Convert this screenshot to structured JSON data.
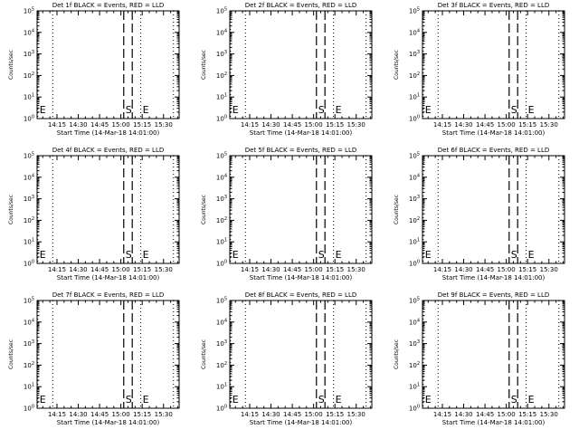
{
  "page": {
    "background": "#ffffff",
    "ink": "#000000"
  },
  "chart_data": [
    {
      "type": "line",
      "title": "Det 1f BLACK = Events, RED = LLD",
      "xlabel": "Start Time (14-Mar-18 14:01:00)",
      "ylabel": "Counts/sec",
      "xlim": [
        "14:01:00",
        "15:41:00"
      ],
      "ylim": [
        1,
        100000
      ],
      "yscale": "log",
      "x_ticks": [
        "14:15",
        "14:30",
        "14:45",
        "15:00",
        "15:15",
        "15:30"
      ],
      "y_ticks": [
        "10^0",
        "10^1",
        "10^2",
        "10^3",
        "10^4",
        "10^5"
      ],
      "series": [],
      "markers": [
        {
          "label": "E",
          "time": "14:01:30",
          "style": "dotted"
        },
        {
          "label": "",
          "time": "14:12:00",
          "style": "dotted"
        },
        {
          "label": "S",
          "time": "15:02:00",
          "style": "dashed"
        },
        {
          "label": "",
          "time": "15:08:00",
          "style": "dashed"
        },
        {
          "label": "E",
          "time": "15:14:00",
          "style": "dotted"
        },
        {
          "label": "",
          "time": "15:37:00",
          "style": "dotted"
        }
      ]
    },
    {
      "type": "line",
      "title": "Det 2f BLACK = Events, RED = LLD",
      "xlabel": "Start Time (14-Mar-18 14:01:00)",
      "ylabel": "Counts/sec",
      "xlim": [
        "14:01:00",
        "15:41:00"
      ],
      "ylim": [
        1,
        100000
      ],
      "yscale": "log",
      "x_ticks": [
        "14:15",
        "14:30",
        "14:45",
        "15:00",
        "15:15",
        "15:30"
      ],
      "y_ticks": [
        "10^0",
        "10^1",
        "10^2",
        "10^3",
        "10^4",
        "10^5"
      ],
      "series": [],
      "markers": [
        {
          "label": "E",
          "time": "14:01:30",
          "style": "dotted"
        },
        {
          "label": "",
          "time": "14:12:00",
          "style": "dotted"
        },
        {
          "label": "S",
          "time": "15:02:00",
          "style": "dashed"
        },
        {
          "label": "",
          "time": "15:08:00",
          "style": "dashed"
        },
        {
          "label": "E",
          "time": "15:14:00",
          "style": "dotted"
        },
        {
          "label": "",
          "time": "15:37:00",
          "style": "dotted"
        }
      ]
    },
    {
      "type": "line",
      "title": "Det 3f BLACK = Events, RED = LLD",
      "xlabel": "Start Time (14-Mar-18 14:01:00)",
      "ylabel": "Counts/sec",
      "xlim": [
        "14:01:00",
        "15:41:00"
      ],
      "ylim": [
        1,
        100000
      ],
      "yscale": "log",
      "x_ticks": [
        "14:15",
        "14:30",
        "14:45",
        "15:00",
        "15:15",
        "15:30"
      ],
      "y_ticks": [
        "10^0",
        "10^1",
        "10^2",
        "10^3",
        "10^4",
        "10^5"
      ],
      "series": [],
      "markers": [
        {
          "label": "E",
          "time": "14:01:30",
          "style": "dotted"
        },
        {
          "label": "",
          "time": "14:12:00",
          "style": "dotted"
        },
        {
          "label": "S",
          "time": "15:02:00",
          "style": "dashed"
        },
        {
          "label": "",
          "time": "15:08:00",
          "style": "dashed"
        },
        {
          "label": "E",
          "time": "15:14:00",
          "style": "dotted"
        },
        {
          "label": "",
          "time": "15:37:00",
          "style": "dotted"
        }
      ]
    },
    {
      "type": "line",
      "title": "Det 4f BLACK = Events, RED = LLD",
      "xlabel": "Start Time (14-Mar-18 14:01:00)",
      "ylabel": "Counts/sec",
      "xlim": [
        "14:01:00",
        "15:41:00"
      ],
      "ylim": [
        1,
        100000
      ],
      "yscale": "log",
      "x_ticks": [
        "14:15",
        "14:30",
        "14:45",
        "15:00",
        "15:15",
        "15:30"
      ],
      "y_ticks": [
        "10^0",
        "10^1",
        "10^2",
        "10^3",
        "10^4",
        "10^5"
      ],
      "series": [],
      "markers": [
        {
          "label": "E",
          "time": "14:01:30",
          "style": "dotted"
        },
        {
          "label": "",
          "time": "14:12:00",
          "style": "dotted"
        },
        {
          "label": "S",
          "time": "15:02:00",
          "style": "dashed"
        },
        {
          "label": "",
          "time": "15:08:00",
          "style": "dashed"
        },
        {
          "label": "E",
          "time": "15:14:00",
          "style": "dotted"
        },
        {
          "label": "",
          "time": "15:37:00",
          "style": "dotted"
        }
      ]
    },
    {
      "type": "line",
      "title": "Det 5f BLACK = Events, RED = LLD",
      "xlabel": "Start Time (14-Mar-18 14:01:00)",
      "ylabel": "Counts/sec",
      "xlim": [
        "14:01:00",
        "15:41:00"
      ],
      "ylim": [
        1,
        100000
      ],
      "yscale": "log",
      "x_ticks": [
        "14:15",
        "14:30",
        "14:45",
        "15:00",
        "15:15",
        "15:30"
      ],
      "y_ticks": [
        "10^0",
        "10^1",
        "10^2",
        "10^3",
        "10^4",
        "10^5"
      ],
      "series": [],
      "markers": [
        {
          "label": "E",
          "time": "14:01:30",
          "style": "dotted"
        },
        {
          "label": "",
          "time": "14:12:00",
          "style": "dotted"
        },
        {
          "label": "S",
          "time": "15:02:00",
          "style": "dashed"
        },
        {
          "label": "",
          "time": "15:08:00",
          "style": "dashed"
        },
        {
          "label": "E",
          "time": "15:14:00",
          "style": "dotted"
        },
        {
          "label": "",
          "time": "15:37:00",
          "style": "dotted"
        }
      ]
    },
    {
      "type": "line",
      "title": "Det 6f BLACK = Events, RED = LLD",
      "xlabel": "Start Time (14-Mar-18 14:01:00)",
      "ylabel": "Counts/sec",
      "xlim": [
        "14:01:00",
        "15:41:00"
      ],
      "ylim": [
        1,
        100000
      ],
      "yscale": "log",
      "x_ticks": [
        "14:15",
        "14:30",
        "14:45",
        "15:00",
        "15:15",
        "15:30"
      ],
      "y_ticks": [
        "10^0",
        "10^1",
        "10^2",
        "10^3",
        "10^4",
        "10^5"
      ],
      "series": [],
      "markers": [
        {
          "label": "E",
          "time": "14:01:30",
          "style": "dotted"
        },
        {
          "label": "",
          "time": "14:12:00",
          "style": "dotted"
        },
        {
          "label": "S",
          "time": "15:02:00",
          "style": "dashed"
        },
        {
          "label": "",
          "time": "15:08:00",
          "style": "dashed"
        },
        {
          "label": "E",
          "time": "15:14:00",
          "style": "dotted"
        },
        {
          "label": "",
          "time": "15:37:00",
          "style": "dotted"
        }
      ]
    },
    {
      "type": "line",
      "title": "Det 7f BLACK = Events, RED = LLD",
      "xlabel": "Start Time (14-Mar-18 14:01:00)",
      "ylabel": "Counts/sec",
      "xlim": [
        "14:01:00",
        "15:41:00"
      ],
      "ylim": [
        1,
        100000
      ],
      "yscale": "log",
      "x_ticks": [
        "14:15",
        "14:30",
        "14:45",
        "15:00",
        "15:15",
        "15:30"
      ],
      "y_ticks": [
        "10^0",
        "10^1",
        "10^2",
        "10^3",
        "10^4",
        "10^5"
      ],
      "series": [],
      "markers": [
        {
          "label": "E",
          "time": "14:01:30",
          "style": "dotted"
        },
        {
          "label": "",
          "time": "14:12:00",
          "style": "dotted"
        },
        {
          "label": "S",
          "time": "15:02:00",
          "style": "dashed"
        },
        {
          "label": "",
          "time": "15:08:00",
          "style": "dashed"
        },
        {
          "label": "E",
          "time": "15:14:00",
          "style": "dotted"
        },
        {
          "label": "",
          "time": "15:37:00",
          "style": "dotted"
        }
      ]
    },
    {
      "type": "line",
      "title": "Det 8f BLACK = Events, RED = LLD",
      "xlabel": "Start Time (14-Mar-18 14:01:00)",
      "ylabel": "Counts/sec",
      "xlim": [
        "14:01:00",
        "15:41:00"
      ],
      "ylim": [
        1,
        100000
      ],
      "yscale": "log",
      "x_ticks": [
        "14:15",
        "14:30",
        "14:45",
        "15:00",
        "15:15",
        "15:30"
      ],
      "y_ticks": [
        "10^0",
        "10^1",
        "10^2",
        "10^3",
        "10^4",
        "10^5"
      ],
      "series": [],
      "markers": [
        {
          "label": "E",
          "time": "14:01:30",
          "style": "dotted"
        },
        {
          "label": "",
          "time": "14:12:00",
          "style": "dotted"
        },
        {
          "label": "S",
          "time": "15:02:00",
          "style": "dashed"
        },
        {
          "label": "",
          "time": "15:08:00",
          "style": "dashed"
        },
        {
          "label": "E",
          "time": "15:14:00",
          "style": "dotted"
        },
        {
          "label": "",
          "time": "15:37:00",
          "style": "dotted"
        }
      ]
    },
    {
      "type": "line",
      "title": "Det 9f BLACK = Events, RED = LLD",
      "xlabel": "Start Time (14-Mar-18 14:01:00)",
      "ylabel": "Counts/sec",
      "xlim": [
        "14:01:00",
        "15:41:00"
      ],
      "ylim": [
        1,
        100000
      ],
      "yscale": "log",
      "x_ticks": [
        "14:15",
        "14:30",
        "14:45",
        "15:00",
        "15:15",
        "15:30"
      ],
      "y_ticks": [
        "10^0",
        "10^1",
        "10^2",
        "10^3",
        "10^4",
        "10^5"
      ],
      "series": [],
      "markers": [
        {
          "label": "E",
          "time": "14:01:30",
          "style": "dotted"
        },
        {
          "label": "",
          "time": "14:12:00",
          "style": "dotted"
        },
        {
          "label": "S",
          "time": "15:02:00",
          "style": "dashed"
        },
        {
          "label": "",
          "time": "15:08:00",
          "style": "dashed"
        },
        {
          "label": "E",
          "time": "15:14:00",
          "style": "dotted"
        },
        {
          "label": "",
          "time": "15:37:00",
          "style": "dotted"
        }
      ]
    }
  ]
}
